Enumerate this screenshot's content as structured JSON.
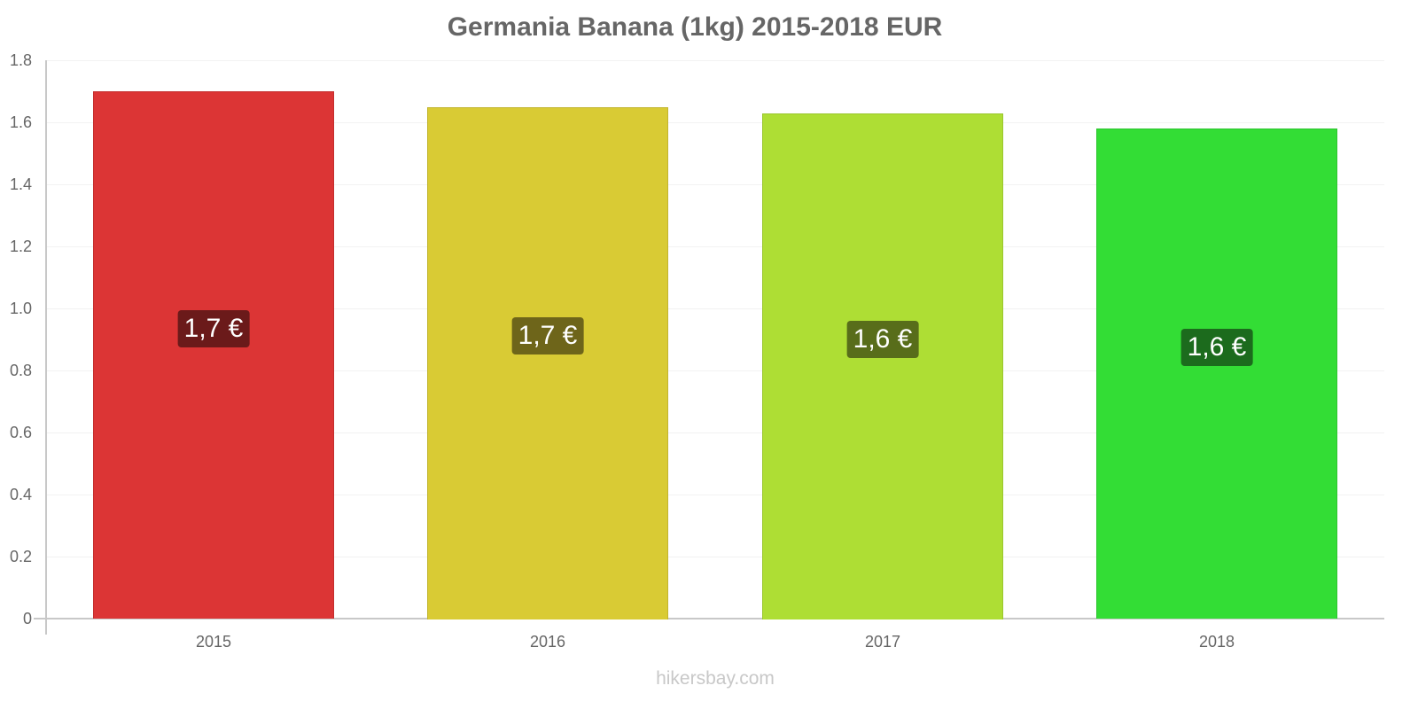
{
  "chart_data": {
    "type": "bar",
    "title": "Germania Banana (1kg) 2015-2018 EUR",
    "xlabel": "",
    "ylabel": "",
    "categories": [
      "2015",
      "2016",
      "2017",
      "2018"
    ],
    "values": [
      1.7,
      1.65,
      1.63,
      1.58
    ],
    "data_labels": [
      "1,7 €",
      "1,7 €",
      "1,6 €",
      "1,6 €"
    ],
    "bar_colors": [
      "#dc3535",
      "#d9cb34",
      "#aede34",
      "#33dd35"
    ],
    "bar_border_colors": [
      "#c42e2e",
      "#c2b52e",
      "#9ac62e",
      "#2dc42f"
    ],
    "label_bg_colors": [
      "#6b1a1a",
      "#6e651a",
      "#586d1a",
      "#1c6b1d"
    ],
    "ylim": [
      0,
      1.8
    ],
    "yticks": [
      "0",
      "0.2",
      "0.4",
      "0.6",
      "0.8",
      "1.0",
      "1.2",
      "1.4",
      "1.6",
      "1.8"
    ],
    "grid": true,
    "legend": null
  },
  "title": "Germania Banana (1kg) 2015-2018 EUR",
  "watermark": "hikersbay.com"
}
